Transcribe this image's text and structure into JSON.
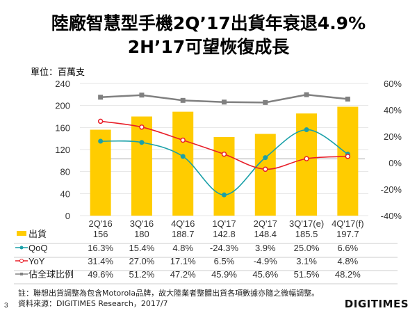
{
  "title_line1": "陸廠智慧型手機2Q’17出貨年衰退4.9%",
  "title_line2": "2H’17可望恢復成長",
  "unit": "單位：百萬支",
  "chart_data": {
    "type": "bar",
    "categories": [
      "2Q'16",
      "3Q'16",
      "4Q'16",
      "1Q'17",
      "2Q'17",
      "3Q'17(e)",
      "4Q'17(f)"
    ],
    "left_axis": {
      "ylim": [
        0,
        240
      ],
      "ticks": [
        "0",
        "40",
        "80",
        "120",
        "160",
        "200",
        "240"
      ]
    },
    "right_axis": {
      "ylim": [
        -40,
        60
      ],
      "ticks": [
        "-40%",
        "-20%",
        "0%",
        "20%",
        "40%",
        "60%"
      ]
    },
    "series": [
      {
        "name": "出貨",
        "type": "bar",
        "axis": "left",
        "color": "#FFCC00",
        "values": [
          156,
          180,
          188.7,
          142.8,
          148.4,
          185.5,
          197.7
        ],
        "labels": [
          "156",
          "180",
          "188.7",
          "142.8",
          "148.4",
          "185.5",
          "197.7"
        ]
      },
      {
        "name": "QoQ",
        "type": "line",
        "axis": "right",
        "color": "#1AA0A8",
        "values": [
          16.3,
          15.4,
          4.8,
          -24.3,
          3.9,
          25.0,
          6.6
        ],
        "labels": [
          "16.3%",
          "15.4%",
          "4.8%",
          "-24.3%",
          "3.9%",
          "25.0%",
          "6.6%"
        ]
      },
      {
        "name": "YoY",
        "type": "line",
        "axis": "right",
        "color": "#E8202A",
        "values": [
          31.4,
          27.0,
          17.1,
          6.5,
          -4.9,
          3.1,
          4.8
        ],
        "labels": [
          "31.4%",
          "27.0%",
          "17.1%",
          "6.5%",
          "-4.9%",
          "3.1%",
          "4.8%"
        ]
      },
      {
        "name": "佔全球比例",
        "type": "line",
        "axis": "right",
        "color": "#808080",
        "values": [
          49.6,
          51.2,
          47.2,
          45.9,
          45.6,
          51.5,
          48.2
        ],
        "labels": [
          "49.6%",
          "51.2%",
          "47.2%",
          "45.9%",
          "45.6%",
          "51.5%",
          "48.2%"
        ]
      }
    ],
    "grid": true,
    "legend": "data-table-bottom"
  },
  "note": "註：聯想出貨調整為包含Motorola品牌，故大陸業者整體出貨各項數據亦隨之微幅調整。",
  "source": "資料來源：DIGITIMES Research，2017/7",
  "page_number": "3",
  "logo": "DIGITIMES"
}
